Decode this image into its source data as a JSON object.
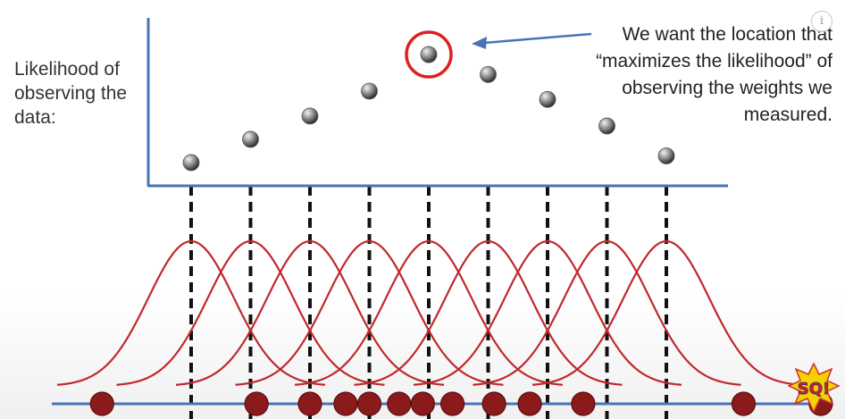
{
  "video": {
    "info_label": "i",
    "logo_text": "SQ!"
  },
  "chart_data": {
    "type": "scatter",
    "ylabel": "Likelihood of observing the data:",
    "annotation": "We want the location that “maximizes the likelihood” of observing the weights we measured.",
    "likelihood_points": [
      0.14,
      0.28,
      0.42,
      0.57,
      0.79,
      0.67,
      0.52,
      0.36,
      0.18
    ],
    "max_index": 4,
    "curve_centers": [
      0,
      1,
      2,
      3,
      4,
      5,
      6,
      7,
      8
    ],
    "measured_weights": [
      -1.5,
      1.1,
      2.0,
      2.6,
      3.0,
      3.5,
      3.9,
      4.4,
      5.1,
      5.7,
      6.6,
      9.3,
      10.6
    ],
    "x_range": [
      -1.8,
      11.2
    ],
    "colors": {
      "axis": "#4a72b8",
      "curve": "#c0282d",
      "dot": "#888888",
      "highlight": "#e02020",
      "data_point": "#8b1a1a"
    }
  }
}
